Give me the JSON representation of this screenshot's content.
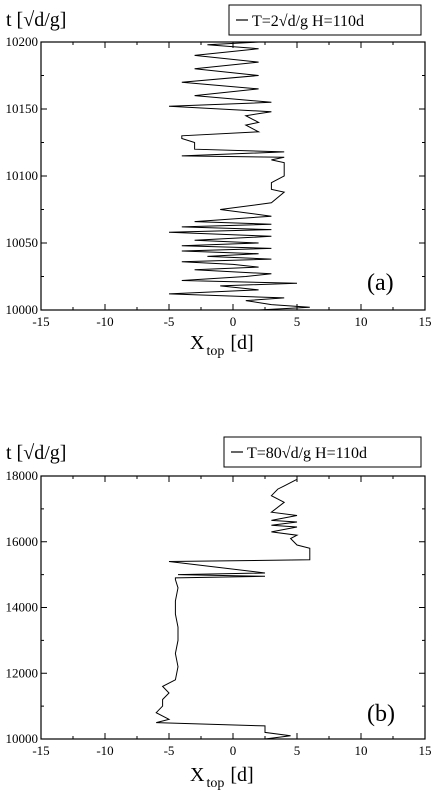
{
  "chart_data": [
    {
      "type": "line",
      "ylabel": "t [√d/g]",
      "xlabel_main": "X",
      "xlabel_sub": "top",
      "xlabel_unit": "[d]",
      "legend": "T=2√d/g  H=110d",
      "panel_label": "(a)",
      "xlim": [
        -15,
        15
      ],
      "ylim": [
        10000,
        10200
      ],
      "xticks": [
        "-15",
        "-10",
        "-5",
        "0",
        "5",
        "10",
        "15"
      ],
      "yticks": [
        "10000",
        "10050",
        "10100",
        "10150",
        "10200"
      ],
      "series": [
        {
          "x": [
            2,
            6,
            3,
            1,
            4,
            -5,
            2,
            -1,
            5,
            -4,
            1,
            3,
            -3,
            2,
            0,
            -4,
            3,
            -2,
            2,
            -4,
            3,
            -4,
            2,
            -3,
            3,
            -5,
            3,
            -4,
            3,
            -3,
            3,
            -1,
            3,
            4,
            3,
            3,
            4,
            4,
            3,
            4,
            -4,
            4,
            -3,
            -3,
            -4,
            -4,
            2,
            1,
            2,
            1,
            3,
            -5,
            3,
            -3,
            2,
            -4,
            2,
            -3,
            2,
            -3,
            2,
            -2,
            2
          ],
          "y": [
            10000,
            10002,
            10004,
            10007,
            10009,
            10012,
            10015,
            10018,
            10020,
            10022,
            10025,
            10027,
            10030,
            10032,
            10034,
            10036,
            10038,
            10040,
            10042,
            10044,
            10046,
            10048,
            10050,
            10052,
            10055,
            10058,
            10060,
            10062,
            10064,
            10066,
            10070,
            10075,
            10080,
            10088,
            10090,
            10095,
            10100,
            10110,
            10112,
            10114,
            10115,
            10118,
            10120,
            10125,
            10128,
            10130,
            10133,
            10138,
            10140,
            10145,
            10148,
            10152,
            10155,
            10160,
            10165,
            10170,
            10175,
            10180,
            10185,
            10190,
            10195,
            10198,
            10200
          ]
        }
      ]
    },
    {
      "type": "line",
      "ylabel": "t [√d/g]",
      "xlabel_main": "X",
      "xlabel_sub": "top",
      "xlabel_unit": "[d]",
      "legend": "T=80√d/g  H=110d",
      "panel_label": "(b)",
      "xlim": [
        -15,
        15
      ],
      "ylim": [
        10000,
        18000
      ],
      "xticks": [
        "-15",
        "-10",
        "-5",
        "0",
        "5",
        "10",
        "15"
      ],
      "yticks": [
        "10000",
        "12000",
        "14000",
        "16000",
        "18000"
      ],
      "series": [
        {
          "x": [
            2.5,
            4.5,
            2.5,
            2.5,
            -6,
            -5,
            -6,
            -5.5,
            -5.5,
            -5,
            -5.5,
            -4.5,
            -4.3,
            -4.5,
            -4.3,
            -4.3,
            -4.5,
            -4.5,
            -4.3,
            -4.5,
            -4.5,
            2.5,
            -4.3,
            2.5,
            -5,
            6,
            6,
            6,
            5,
            4.5,
            5,
            3,
            5,
            3,
            5,
            3,
            5,
            3,
            4,
            3,
            3.5,
            4,
            5,
            5
          ],
          "y": [
            10000,
            10100,
            10200,
            10400,
            10500,
            10600,
            10800,
            11000,
            11200,
            11400,
            11600,
            11800,
            12200,
            12600,
            13000,
            13400,
            13800,
            14200,
            14600,
            14850,
            14900,
            14950,
            15000,
            15050,
            15400,
            15450,
            15600,
            15800,
            15900,
            16100,
            16200,
            16300,
            16450,
            16500,
            16600,
            16650,
            16800,
            16900,
            17200,
            17400,
            17600,
            17700,
            17900,
            18000
          ]
        }
      ]
    }
  ]
}
